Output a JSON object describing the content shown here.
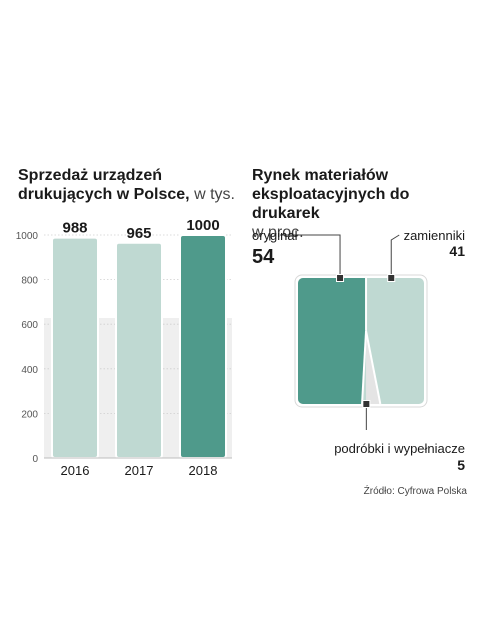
{
  "bar_chart": {
    "title_bold": "Sprzedaż urządzeń drukujących w Polsce,",
    "title_light": " w tys."
  },
  "share_chart": {
    "title_bold": "Rynek materiałów eksploatacyjnych do drukarek",
    "title_light": "w proc."
  },
  "source": "Źródło: Cyfrowa Polska",
  "colors": {
    "light": "#bfd9d2",
    "dark": "#4f9a8b",
    "gray": "#e4e4e4"
  },
  "chart_data": [
    {
      "type": "bar",
      "title": "Sprzedaż urządzeń drukujących w Polsce, w tys.",
      "categories": [
        "2016",
        "2017",
        "2018"
      ],
      "values": [
        988,
        965,
        1000
      ],
      "ylim": [
        0,
        1000
      ],
      "yticks": [
        0,
        200,
        400,
        600,
        800,
        1000
      ],
      "highlight_index": 2
    },
    {
      "type": "area",
      "title": "Rynek materiałów eksploatacyjnych do drukarek w proc.",
      "segments": [
        {
          "name": "oryginał",
          "value": 54
        },
        {
          "name": "zamienniki",
          "value": 41
        },
        {
          "name": "podróbki i wypełniacze",
          "value": 5
        }
      ]
    }
  ]
}
